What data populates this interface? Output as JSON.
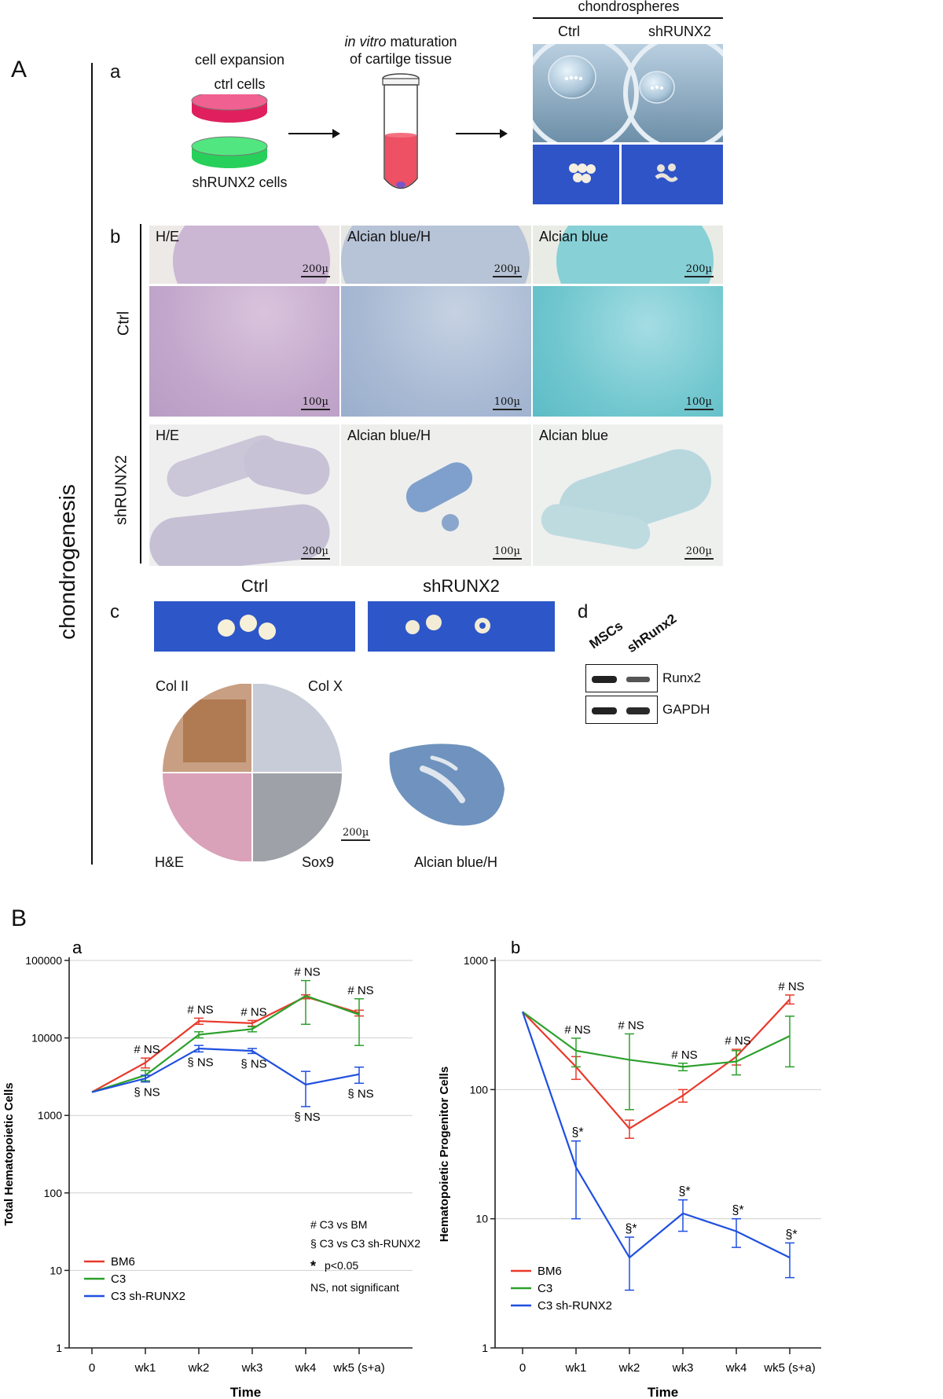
{
  "panelA": {
    "letter": "A",
    "side_label": "chondrogenesis",
    "a": {
      "letter": "a",
      "cell_expansion": "cell expansion",
      "ctrl_cells": "ctrl cells",
      "sh_cells": "shRUNX2 cells",
      "maturation_italic": "in vitro",
      "maturation_rest": "maturation",
      "maturation_line2": "of cartilge tissue",
      "chondrospheres": "chondrospheres",
      "ctrl": "Ctrl",
      "sh": "shRUNX2"
    },
    "b": {
      "letter": "b",
      "row_ctrl": "Ctrl",
      "row_sh": "shRUNX2",
      "labels": [
        "H/E",
        "Alcian blue/H",
        "Alcian blue"
      ],
      "scales_top": [
        "200µ",
        "200µ",
        "200µ"
      ],
      "scales_mid": [
        "100µ",
        "100µ",
        "100µ"
      ],
      "scales_bot": [
        "200µ",
        "100µ",
        "200µ"
      ]
    },
    "c": {
      "letter": "c",
      "ctrl": "Ctrl",
      "sh": "shRUNX2",
      "col2": "Col II",
      "colx": "Col X",
      "he": "H&E",
      "sox9": "Sox9",
      "scale": "200µ",
      "alcian": "Alcian blue/H"
    },
    "d": {
      "letter": "d",
      "lane1": "MSCs",
      "lane2": "shRunx2",
      "band1": "Runx2",
      "band2": "GAPDH"
    }
  },
  "panelB": {
    "letter": "B",
    "legend_notes": [
      "# C3 vs BM",
      "§ C3 vs C3 sh-RUNX2",
      "p<0.05",
      "NS, not significant"
    ],
    "asterisk": "*",
    "colors": {
      "BM6": "#e8392b",
      "C3": "#2ca02c",
      "C3 sh-RUNX2": "#1f4fe0"
    }
  },
  "chart_data": [
    {
      "type": "line",
      "panel": "a",
      "ylabel": "Total Hematopoietic Cells",
      "xlabel": "Time",
      "y_scale": "log",
      "ylim": [
        1,
        100000
      ],
      "y_ticks": [
        "1",
        "10",
        "100",
        "1000",
        "10000",
        "100000"
      ],
      "categories": [
        "0",
        "wk1",
        "wk2",
        "wk3",
        "wk4",
        "wk5 (s+a)"
      ],
      "series": [
        {
          "name": "BM6",
          "values": [
            2000,
            4800,
            16500,
            15500,
            34000,
            21000
          ],
          "err": [
            0,
            700,
            1500,
            1300,
            2000,
            1800
          ]
        },
        {
          "name": "C3",
          "values": [
            2000,
            3300,
            11000,
            13000,
            35000,
            20000
          ],
          "err": [
            0,
            500,
            1000,
            1000,
            20000,
            12000
          ]
        },
        {
          "name": "C3 sh-RUNX2",
          "values": [
            2000,
            3000,
            7300,
            6800,
            2500,
            3400
          ],
          "err": [
            0,
            300,
            700,
            500,
            1200,
            800
          ]
        }
      ],
      "annotations": [
        {
          "x": "wk1",
          "top": "# NS",
          "bottom": "§ NS"
        },
        {
          "x": "wk2",
          "top": "# NS",
          "bottom": "§ NS"
        },
        {
          "x": "wk3",
          "top": "# NS",
          "bottom": "§ NS"
        },
        {
          "x": "wk4",
          "top": "# NS",
          "bottom": "§ NS"
        },
        {
          "x": "wk5 (s+a)",
          "top": "# NS",
          "bottom": "§ NS"
        }
      ],
      "legend": "bottom-left"
    },
    {
      "type": "line",
      "panel": "b",
      "ylabel": "Hematopoietic Progenitor Cells",
      "xlabel": "Time",
      "y_scale": "log",
      "ylim": [
        1,
        1000
      ],
      "y_ticks": [
        "1",
        "10",
        "100",
        "1000"
      ],
      "categories": [
        "0",
        "wk1",
        "wk2",
        "wk3",
        "wk4",
        "wk5 (s+a)"
      ],
      "series": [
        {
          "name": "BM6",
          "values": [
            400,
            150,
            50,
            90,
            180,
            500
          ],
          "err": [
            0,
            30,
            8,
            10,
            25,
            40
          ]
        },
        {
          "name": "C3",
          "values": [
            400,
            200,
            170,
            150,
            165,
            260
          ],
          "err": [
            0,
            50,
            100,
            10,
            35,
            110
          ]
        },
        {
          "name": "C3 sh-RUNX2",
          "values": [
            400,
            25,
            5,
            11,
            8,
            5
          ],
          "err": [
            0,
            15,
            2.2,
            3,
            2,
            1.5
          ]
        }
      ],
      "annotations": [
        {
          "x": "wk1",
          "top": "# NS",
          "bottom": "§*"
        },
        {
          "x": "wk2",
          "top": "# NS",
          "bottom": "§*"
        },
        {
          "x": "wk3",
          "top": "# NS",
          "bottom": "§*"
        },
        {
          "x": "wk4",
          "top": "# NS",
          "bottom": "§*"
        },
        {
          "x": "wk5 (s+a)",
          "top": "# NS",
          "bottom": "§*"
        }
      ],
      "legend": "bottom-left"
    }
  ]
}
